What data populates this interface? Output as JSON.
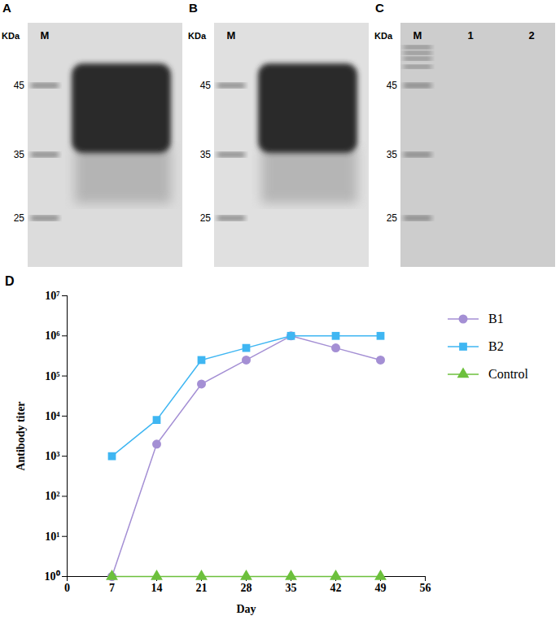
{
  "panels": [
    {
      "letter": "A",
      "unit": "KDa",
      "lanes": [
        "M"
      ],
      "markers": [
        45,
        35,
        25
      ]
    },
    {
      "letter": "B",
      "unit": "KDa",
      "lanes": [
        "M"
      ],
      "markers": [
        45,
        35,
        25
      ]
    },
    {
      "letter": "C",
      "unit": "KDa",
      "lanes": [
        "M",
        "1",
        "2"
      ],
      "markers": [
        45,
        35,
        25
      ]
    }
  ],
  "chart_data": {
    "panel": "D",
    "type": "line",
    "x_label": "Day",
    "y_label": "Antibody titer",
    "x": [
      7,
      14,
      21,
      28,
      35,
      42,
      49
    ],
    "xlim": [
      0,
      56
    ],
    "xticks": [
      0,
      7,
      14,
      21,
      28,
      35,
      42,
      49,
      56
    ],
    "log": "y",
    "ylim": [
      1,
      10000000
    ],
    "yticks": [
      {
        "value": 1,
        "label": "10⁰"
      },
      {
        "value": 10,
        "label": "10¹"
      },
      {
        "value": 100,
        "label": "10²"
      },
      {
        "value": 1000,
        "label": "10³"
      },
      {
        "value": 10000,
        "label": "10⁴"
      },
      {
        "value": 100000,
        "label": "10⁵"
      },
      {
        "value": 1000000,
        "label": "10⁶"
      },
      {
        "value": 10000000,
        "label": "10⁷"
      }
    ],
    "grid": false,
    "legend": "right",
    "series": [
      {
        "name": "B1",
        "color": "#a48fd4",
        "marker": "circle",
        "values": [
          1,
          2000,
          63000,
          250000,
          1000000,
          500000,
          250000
        ]
      },
      {
        "name": "B2",
        "color": "#3fb6f2",
        "marker": "square",
        "values": [
          1000,
          8000,
          250000,
          500000,
          1000000,
          1000000,
          1000000
        ]
      },
      {
        "name": "Control",
        "color": "#6cc03c",
        "marker": "triangle",
        "values": [
          1,
          1,
          1,
          1,
          1,
          1,
          1
        ]
      }
    ]
  }
}
